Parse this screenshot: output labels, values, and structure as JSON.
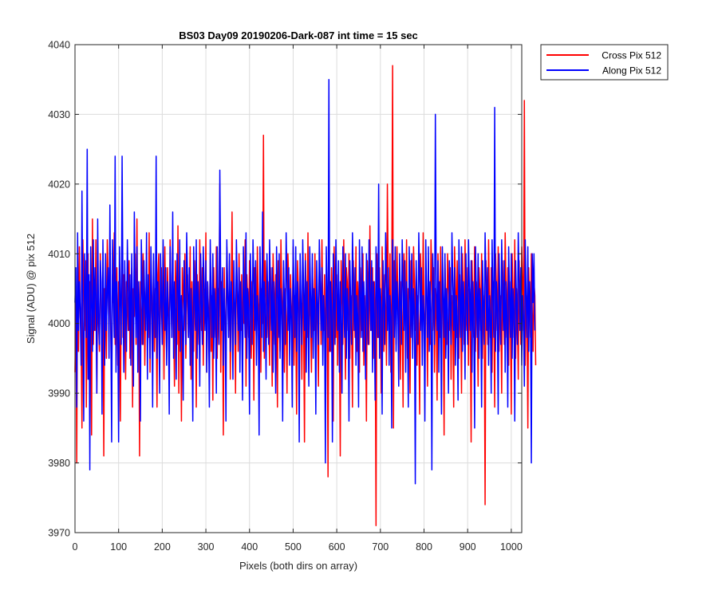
{
  "chart_data": {
    "type": "line",
    "title": "BS03 Day09 20190206-Dark-087 int time = 15 sec",
    "xlabel": "Pixels (both dirs on array)",
    "ylabel": "Signal (ADU) @ pix 512",
    "xlim": [
      0,
      1024
    ],
    "ylim": [
      3970,
      4040
    ],
    "xticks": [
      0,
      100,
      200,
      300,
      400,
      500,
      600,
      700,
      800,
      900,
      1000
    ],
    "yticks": [
      3970,
      3980,
      3990,
      4000,
      4010,
      4020,
      4030,
      4040
    ],
    "grid": true,
    "legend_position": "outside-top-right",
    "sample_step": 2,
    "series": [
      {
        "name": "Cross Pix 512",
        "color": "#ff0000",
        "y": [
          3993,
          4003,
          3980,
          4008,
          3996,
          4011,
          4001,
          3998,
          3985,
          4012,
          4005,
          3999,
          4009,
          3988,
          4003,
          4010,
          3992,
          4006,
          4001,
          3984,
          4015,
          3997,
          4004,
          3999,
          4012,
          3990,
          4006,
          4000,
          3996,
          4010,
          4003,
          3993,
          4008,
          3981,
          4005,
          4001,
          3995,
          4012,
          4006,
          3998,
          4010,
          3999,
          3990,
          4007,
          4003,
          4013,
          3997,
          4002,
          4008,
          3994,
          4006,
          4000,
          3986,
          4004,
          4011,
          3998,
          4007,
          4001,
          3992,
          4006,
          4004,
          3999,
          4009,
          3995,
          4003,
          4008,
          3988,
          4005,
          4001,
          4010,
          3997,
          4015,
          3999,
          4004,
          3981,
          4006,
          4002,
          3997,
          4010,
          4005,
          3994,
          4003,
          4007,
          4000,
          3998,
          4013,
          3993,
          4006,
          4002,
          3999,
          4009,
          3996,
          4005,
          4001,
          3988,
          4007,
          4010,
          3995,
          4002,
          4008,
          3999,
          4005,
          3992,
          4011,
          4000,
          3996,
          4008,
          4003,
          3994,
          4012,
          4004,
          3998,
          4006,
          4001,
          3991,
          4009,
          4003,
          3997,
          4014,
          3990,
          4005,
          4001,
          3986,
          4008,
          4004,
          3999,
          4010,
          3995,
          4003,
          4007,
          3998,
          4002,
          4011,
          3992,
          4006,
          4000,
          3996,
          4009,
          4004,
          3988,
          4007,
          4001,
          3997,
          4012,
          4003,
          3999,
          4008,
          3994,
          4005,
          4000,
          4013,
          3993,
          4006,
          4002,
          3999,
          4010,
          3996,
          4004,
          3989,
          4008,
          4002,
          3998,
          4011,
          3995,
          4005,
          4001,
          4020,
          3993,
          4006,
          4003,
          3984,
          4008,
          4000,
          3997,
          4011,
          4004,
          3999,
          4009,
          3992,
          4003,
          4016,
          3998,
          4006,
          4001,
          3990,
          4008,
          4004,
          3996,
          4010,
          4002,
          3999,
          4007,
          3994,
          4005,
          4000,
          4012,
          3991,
          4007,
          4003,
          3998,
          4009,
          4001,
          3995,
          4006,
          4004,
          3989,
          4008,
          4002,
          3997,
          4011,
          4003,
          3999,
          4007,
          3993,
          4005,
          4000,
          4027,
          3995,
          4009,
          4004,
          3998,
          4006,
          4002,
          3994,
          4008,
          4001,
          3991,
          4010,
          4005,
          3997,
          4007,
          4003,
          3988,
          4009,
          4000,
          3996,
          4012,
          4004,
          3998,
          4008,
          3993,
          4005,
          4001,
          3990,
          4010,
          4006,
          3997,
          4007,
          4002,
          3999,
          4011,
          3994,
          4004,
          4000,
          3987,
          4009,
          4005,
          3996,
          4008,
          4002,
          3992,
          4006,
          4001,
          3983,
          4010,
          4004,
          3998,
          4013,
          3996,
          4005,
          4001,
          3993,
          4008,
          4003,
          3999,
          4010,
          3995,
          4004,
          4000,
          3991,
          4009,
          4006,
          3997,
          4012,
          4002,
          3999,
          4007,
          3994,
          4005,
          4001,
          3978,
          4010,
          4004,
          3996,
          4008,
          4002,
          3986,
          4011,
          4003,
          3998,
          4007,
          3994,
          4005,
          4000,
          3981,
          4009,
          4004,
          3997,
          4012,
          4002,
          3992,
          4008,
          4006,
          3999,
          4010,
          3995,
          4004,
          4001,
          3988,
          4009,
          4003,
          3998,
          4011,
          3996,
          4006,
          4002,
          3993,
          4008,
          4005,
          3999,
          4010,
          3994,
          4004,
          4000,
          3986,
          4009,
          4003,
          3997,
          4014,
          4002,
          3999,
          4008,
          3995,
          4006,
          4001,
          3971,
          4010,
          4005,
          3998,
          4008,
          4003,
          3990,
          4011,
          4004,
          3996,
          4007,
          4002,
          3994,
          4020,
          4006,
          3999,
          4010,
          3993,
          4005,
          4037,
          3985,
          4009,
          4003,
          3997,
          4011,
          4004,
          3998,
          4008,
          3992,
          4006,
          4001,
          3988,
          4010,
          4004,
          3999,
          4012,
          3995,
          4005,
          4001,
          3990,
          4009,
          4003,
          3997,
          4011,
          4006,
          3999,
          4008,
          3994,
          4004,
          4000,
          3987,
          4010,
          4005,
          3998,
          4013,
          4002,
          3996,
          4007,
          4004,
          3991,
          4009,
          4001,
          3997,
          4012,
          4006,
          3999,
          4008,
          3993,
          4005,
          4001,
          3989,
          4010,
          4004,
          3998,
          4011,
          3995,
          4006,
          4002,
          3984,
          4009,
          4003,
          3997,
          4010,
          4005,
          3999,
          4008,
          3992,
          4004,
          4000,
          3988,
          4011,
          4006,
          3998,
          4009,
          4003,
          3995,
          4007,
          4001,
          3990,
          4010,
          4004,
          3997,
          4012,
          4002,
          3999,
          4008,
          3994,
          4005,
          4001,
          3983,
          4009,
          4003,
          3998,
          4011,
          3996,
          4006,
          4002,
          3991,
          4008,
          4005,
          3999,
          4010,
          3995,
          4004,
          4001,
          3974,
          4009,
          4004,
          3997,
          4012,
          4003,
          3998,
          4008,
          3993,
          4006,
          4001,
          3988,
          4010,
          4005,
          3999,
          4011,
          3996,
          4004,
          4002,
          3990,
          4009,
          4003,
          3997,
          4013,
          4005,
          3998,
          4008,
          3994,
          4006,
          4001,
          3987,
          4010,
          4004,
          3998,
          4012,
          3995,
          4005,
          4002,
          3992,
          4009,
          4003,
          3997,
          4011,
          4006,
          3999,
          4032,
          3994,
          4004,
          4001,
          3985,
          4008,
          4003,
          3998,
          4010,
          4002,
          3996,
          4006,
          4004,
          3994
        ]
      },
      {
        "name": "Along Pix 512",
        "color": "#0000ff",
        "y": [
          4003,
          4008,
          3988,
          4013,
          3999,
          4006,
          4002,
          3994,
          4019,
          4001,
          3986,
          4010,
          4005,
          3998,
          4025,
          3992,
          4007,
          3979,
          4011,
          4003,
          3996,
          4012,
          3999,
          4008,
          4004,
          3990,
          4015,
          4001,
          3997,
          4009,
          4006,
          3987,
          4012,
          4002,
          3994,
          4010,
          3999,
          4005,
          4008,
          3995,
          4017,
          4001,
          3983,
          4012,
          4004,
          3998,
          4024,
          3993,
          4006,
          4000,
          3983,
          4011,
          4003,
          3997,
          4024,
          4004,
          3993,
          4009,
          4001,
          3996,
          4012,
          4005,
          3999,
          4007,
          3994,
          4010,
          4002,
          3991,
          4016,
          4004,
          3998,
          4011,
          3993,
          4006,
          4001,
          3986,
          4012,
          4005,
          3997,
          4009,
          4003,
          3999,
          4013,
          3992,
          4007,
          4001,
          3995,
          4011,
          4004,
          3988,
          4010,
          4002,
          3998,
          4024,
          3995,
          4006,
          4001,
          3990,
          4010,
          4004,
          3997,
          4012,
          4003,
          3999,
          4008,
          3994,
          4006,
          4001,
          3987,
          4011,
          4004,
          3998,
          4016,
          3995,
          4006,
          4002,
          3992,
          4010,
          4005,
          3999,
          4012,
          3996,
          4004,
          4001,
          3989,
          4009,
          4003,
          3997,
          4013,
          4006,
          3998,
          4008,
          3994,
          4005,
          4000,
          3986,
          4011,
          4004,
          3999,
          4012,
          3995,
          4006,
          4002,
          3991,
          4010,
          4003,
          3997,
          4011,
          4005,
          3999,
          4009,
          3993,
          4006,
          4001,
          3988,
          4012,
          4004,
          3998,
          4010,
          3995,
          4005,
          4002,
          3990,
          4011,
          4003,
          3997,
          4022,
          4006,
          3999,
          4008,
          3994,
          4005,
          4001,
          3986,
          4012,
          4004,
          3998,
          4010,
          3996,
          4006,
          4002,
          3992,
          4009,
          4003,
          3997,
          4012,
          4005,
          3999,
          4008,
          3993,
          4006,
          4001,
          3989,
          4011,
          4004,
          3998,
          4013,
          3995,
          4005,
          4002,
          3987,
          4010,
          4003,
          3997,
          4012,
          4006,
          3999,
          4009,
          3994,
          4004,
          4001,
          3984,
          4011,
          4004,
          3998,
          4016,
          3996,
          4006,
          4002,
          3992,
          4010,
          4003,
          3997,
          4012,
          4005,
          3999,
          4008,
          3993,
          4006,
          4001,
          3990,
          4011,
          4004,
          3998,
          4010,
          3995,
          4005,
          4002,
          3986,
          4009,
          4003,
          3997,
          4013,
          4006,
          3999,
          4008,
          3994,
          4005,
          4001,
          3988,
          4012,
          4004,
          3998,
          4011,
          3996,
          4006,
          4002,
          3983,
          4010,
          4003,
          3997,
          4012,
          4005,
          3999,
          4009,
          3993,
          4006,
          4001,
          3991,
          4011,
          4004,
          3998,
          4010,
          3995,
          4005,
          4002,
          3987,
          4009,
          4003,
          3997,
          4012,
          4006,
          3999,
          4008,
          3994,
          4004,
          4001,
          3980,
          4011,
          4004,
          3998,
          4035,
          3996,
          4006,
          4002,
          3983,
          4010,
          4003,
          3997,
          4012,
          4005,
          3999,
          4009,
          3993,
          4006,
          4001,
          3990,
          4011,
          4004,
          3998,
          4010,
          3995,
          4005,
          4002,
          3986,
          4009,
          4003,
          3997,
          4013,
          4006,
          3999,
          4008,
          3994,
          4004,
          4001,
          3988,
          4012,
          4004,
          3998,
          4011,
          3996,
          4006,
          4002,
          3992,
          4010,
          4003,
          3997,
          4012,
          4005,
          3999,
          4009,
          3993,
          4006,
          4001,
          3989,
          4011,
          4004,
          3998,
          4020,
          3995,
          4005,
          4002,
          3987,
          4009,
          4003,
          3997,
          4013,
          4006,
          3999,
          4008,
          3994,
          4004,
          4001,
          3985,
          4012,
          4004,
          3998,
          4011,
          3996,
          4006,
          4002,
          3991,
          4010,
          4003,
          3997,
          4012,
          4005,
          3999,
          4009,
          3993,
          4006,
          4001,
          3988,
          4011,
          4004,
          3998,
          4010,
          3995,
          4005,
          4002,
          3977,
          4009,
          4003,
          3997,
          4013,
          4006,
          3999,
          4008,
          3994,
          4004,
          4001,
          3986,
          4012,
          4004,
          3998,
          4011,
          3996,
          4006,
          4002,
          3979,
          4010,
          4003,
          3997,
          4030,
          4005,
          3999,
          4009,
          3993,
          4006,
          4001,
          3987,
          4011,
          4004,
          3998,
          4010,
          3995,
          4005,
          4002,
          3990,
          4009,
          4003,
          3997,
          4013,
          4006,
          3999,
          4008,
          3994,
          4004,
          4001,
          3989,
          4012,
          4004,
          3998,
          4011,
          3996,
          4006,
          4002,
          3992,
          4010,
          4003,
          3997,
          4012,
          4005,
          3999,
          4009,
          3993,
          4006,
          4001,
          3985,
          4011,
          4004,
          3998,
          4010,
          3995,
          4005,
          4002,
          3988,
          4009,
          4003,
          3997,
          4013,
          4006,
          3999,
          4008,
          3994,
          4004,
          4001,
          3990,
          4012,
          4004,
          3998,
          4031,
          3996,
          4006,
          4002,
          3987,
          4010,
          4003,
          3997,
          4012,
          4005,
          3999,
          4009,
          3993,
          4006,
          4001,
          3988,
          4011,
          4004,
          3998,
          4010,
          3995,
          4005,
          4002,
          3986,
          4009,
          4003,
          3997,
          4013,
          4006,
          3999,
          4008,
          3994,
          4004,
          4001,
          3991,
          4012,
          4004,
          3998,
          4011,
          3996,
          4006,
          4002,
          3980,
          4010,
          4003,
          4010,
          3999
        ]
      }
    ]
  }
}
